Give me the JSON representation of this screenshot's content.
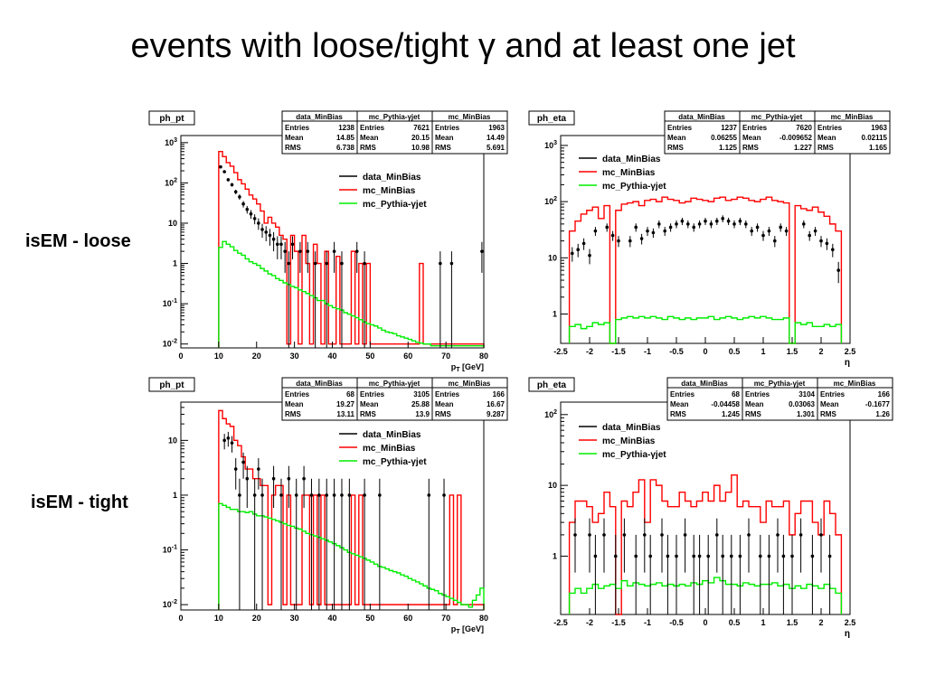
{
  "slide": {
    "title": "events with loose/tight γ and at least one jet",
    "row_labels": [
      "isEM - loose",
      "isEM - tight"
    ]
  },
  "colors": {
    "data": "#000000",
    "mc_minbias": "#ff0000",
    "pythia": "#00ee00"
  },
  "chart_data": [
    {
      "type": "line",
      "title": "ph_pt",
      "xlabel": "p_T [GeV]",
      "ylabel": "",
      "x_scale": "linear",
      "y_scale": "log",
      "xlim": [
        0,
        80
      ],
      "ylim": [
        0.008,
        1500
      ],
      "x_ticks": [
        "0",
        "10",
        "20",
        "30",
        "40",
        "50",
        "60",
        "70",
        "80"
      ],
      "y_ticks": [
        "10^-2",
        "10^-1",
        "1",
        "10",
        "10^2",
        "10^3"
      ],
      "legend": [
        "data_MinBias",
        "mc_MinBias",
        "mc_Pythia-γjet"
      ],
      "stats": [
        {
          "name": "data_MinBias",
          "rows": [
            [
              "Entries",
              "1238"
            ],
            [
              "Mean",
              "14.85"
            ],
            [
              "RMS",
              "6.738"
            ]
          ]
        },
        {
          "name": "mc_Pythia-γjet",
          "rows": [
            [
              "Entries",
              "7621"
            ],
            [
              "Mean",
              "20.15"
            ],
            [
              "RMS",
              "10.98"
            ]
          ]
        },
        {
          "name": "mc_MinBias",
          "rows": [
            [
              "Entries",
              "1963"
            ],
            [
              "Mean",
              "14.49"
            ],
            [
              "RMS",
              "5.691"
            ]
          ]
        }
      ],
      "bin_edges_start": 10,
      "bin_width": 1,
      "series": [
        {
          "name": "mc_MinBias",
          "values": [
            600,
            450,
            320,
            260,
            180,
            120,
            95,
            70,
            50,
            40,
            30,
            20,
            10,
            14,
            10,
            8,
            5,
            4,
            0.01,
            5,
            2,
            0.01,
            5,
            1,
            0.01,
            3,
            1,
            0.01,
            2,
            0.01,
            0.01,
            1.5,
            0.01,
            0.01,
            0.01,
            2,
            0.01,
            1,
            0.01,
            1,
            0.01,
            0.01,
            0.01,
            0.01,
            0.01,
            0.01,
            0.01,
            0.01,
            0.01,
            0.01,
            0.01,
            0.01,
            0.01,
            1,
            0.01,
            0.01,
            0.01,
            0.01,
            0.01,
            0.01,
            0.01,
            0.01,
            0.01,
            0.01,
            0.01,
            0.01,
            0.01,
            0.01,
            0.01,
            0.01
          ]
        },
        {
          "name": "mc_Pythia-γjet",
          "values": [
            2.5,
            3.5,
            3.0,
            2.6,
            2.1,
            1.8,
            1.6,
            1.3,
            1.1,
            1.0,
            0.9,
            0.75,
            0.65,
            0.55,
            0.5,
            0.42,
            0.38,
            0.33,
            0.3,
            0.27,
            0.25,
            0.22,
            0.2,
            0.18,
            0.16,
            0.14,
            0.12,
            0.12,
            0.1,
            0.09,
            0.08,
            0.075,
            0.07,
            0.06,
            0.055,
            0.05,
            0.045,
            0.04,
            0.035,
            0.032,
            0.03,
            0.028,
            0.025,
            0.022,
            0.02,
            0.019,
            0.018,
            0.016,
            0.015,
            0.014,
            0.013,
            0.012,
            0.011,
            0.0105,
            0.01,
            0.01,
            0.009,
            0.009,
            0.009,
            0.009,
            0.009,
            0.009,
            0.009,
            0.009,
            0.009,
            0.009,
            0.009,
            0.009,
            0.009,
            0.009
          ]
        }
      ],
      "points": {
        "name": "data_MinBias",
        "x": [
          10.5,
          11.5,
          12.5,
          13.5,
          14.5,
          15.5,
          16.5,
          17.5,
          18.5,
          19.5,
          20.5,
          21.5,
          22.5,
          23.5,
          24.5,
          25.5,
          26.5,
          27.5,
          28.5,
          29.5,
          31.5,
          33.5,
          35.5,
          38.5,
          40.5,
          42.5,
          46.5,
          48.5,
          68.5,
          71.5,
          79.5
        ],
        "y": [
          250,
          190,
          120,
          90,
          60,
          45,
          30,
          22,
          17,
          13,
          10,
          7,
          6,
          5,
          4,
          3,
          3,
          2,
          1,
          3,
          2,
          2,
          1,
          1,
          2,
          1,
          2,
          1,
          1,
          1,
          2
        ]
      }
    },
    {
      "type": "line",
      "title": "ph_eta",
      "xlabel": "η",
      "ylabel": "",
      "x_scale": "linear",
      "y_scale": "log",
      "xlim": [
        -2.5,
        2.5
      ],
      "ylim": [
        0.3,
        1500
      ],
      "x_ticks": [
        "-2.5",
        "-2",
        "-1.5",
        "-1",
        "-0.5",
        "0",
        "0.5",
        "1",
        "1.5",
        "2",
        "2.5"
      ],
      "y_ticks": [
        "1",
        "10",
        "10^2",
        "10^3"
      ],
      "legend": [
        "data_MinBias",
        "mc_MinBias",
        "mc_Pythia-γjet"
      ],
      "stats": [
        {
          "name": "data_MinBias",
          "rows": [
            [
              "Entries",
              "1237"
            ],
            [
              "Mean",
              "0.06255"
            ],
            [
              "RMS",
              "1.125"
            ]
          ]
        },
        {
          "name": "mc_Pythia-γjet",
          "rows": [
            [
              "Entries",
              "7620"
            ],
            [
              "Mean",
              "-0.009652"
            ],
            [
              "RMS",
              "1.227"
            ]
          ]
        },
        {
          "name": "mc_MinBias",
          "rows": [
            [
              "Entries",
              "1963"
            ],
            [
              "Mean",
              "0.02115"
            ],
            [
              "RMS",
              "1.165"
            ]
          ]
        }
      ],
      "bin_edges_start": -2.35,
      "bin_width": 0.1,
      "series": [
        {
          "name": "mc_MinBias",
          "values": [
            30,
            45,
            60,
            70,
            80,
            50,
            85,
            0.3,
            70,
            90,
            95,
            100,
            85,
            105,
            110,
            100,
            120,
            110,
            105,
            95,
            100,
            115,
            110,
            105,
            100,
            115,
            120,
            105,
            110,
            120,
            115,
            105,
            100,
            110,
            120,
            105,
            100,
            95,
            0.3,
            85,
            75,
            70,
            80,
            65,
            55,
            40,
            30
          ]
        },
        {
          "name": "mc_Pythia-γjet",
          "values": [
            0.6,
            0.65,
            0.55,
            0.6,
            0.7,
            0.65,
            0.7,
            0.3,
            0.8,
            0.85,
            0.9,
            0.85,
            0.9,
            0.85,
            0.9,
            0.85,
            0.8,
            0.9,
            0.85,
            0.8,
            0.85,
            0.8,
            0.85,
            0.85,
            0.9,
            0.8,
            0.85,
            0.9,
            0.85,
            0.8,
            0.85,
            0.9,
            0.85,
            0.9,
            0.85,
            0.8,
            0.8,
            0.85,
            0.3,
            0.7,
            0.65,
            0.7,
            0.6,
            0.6,
            0.65,
            0.6,
            0.65
          ]
        }
      ],
      "points": {
        "name": "data_MinBias",
        "x": [
          -2.3,
          -2.2,
          -2.1,
          -2.0,
          -1.9,
          -1.7,
          -1.6,
          -1.5,
          -1.3,
          -1.2,
          -1.1,
          -1.0,
          -0.9,
          -0.8,
          -0.7,
          -0.6,
          -0.5,
          -0.4,
          -0.3,
          -0.2,
          -0.1,
          0.0,
          0.1,
          0.2,
          0.3,
          0.4,
          0.5,
          0.6,
          0.7,
          0.8,
          0.9,
          1.0,
          1.1,
          1.2,
          1.3,
          1.4,
          1.7,
          1.8,
          1.9,
          2.0,
          2.1,
          2.2,
          2.3
        ],
        "y": [
          12,
          14,
          18,
          11,
          30,
          35,
          25,
          20,
          20,
          35,
          22,
          30,
          28,
          40,
          30,
          35,
          40,
          45,
          40,
          35,
          40,
          45,
          40,
          45,
          50,
          45,
          40,
          45,
          40,
          30,
          35,
          25,
          30,
          20,
          35,
          30,
          40,
          25,
          30,
          20,
          18,
          14,
          6
        ]
      }
    },
    {
      "type": "line",
      "title": "ph_pt",
      "xlabel": "p_T [GeV]",
      "ylabel": "",
      "x_scale": "linear",
      "y_scale": "log",
      "xlim": [
        0,
        80
      ],
      "ylim": [
        0.008,
        50
      ],
      "x_ticks": [
        "0",
        "10",
        "20",
        "30",
        "40",
        "50",
        "60",
        "70",
        "80"
      ],
      "y_ticks": [
        "10^-2",
        "10^-1",
        "1",
        "10"
      ],
      "legend": [
        "data_MinBias",
        "mc_MinBias",
        "mc_Pythia-γjet"
      ],
      "stats": [
        {
          "name": "data_MinBias",
          "rows": [
            [
              "Entries",
              "68"
            ],
            [
              "Mean",
              "19.27"
            ],
            [
              "RMS",
              "13.11"
            ]
          ]
        },
        {
          "name": "mc_Pythia-γjet",
          "rows": [
            [
              "Entries",
              "3105"
            ],
            [
              "Mean",
              "25.88"
            ],
            [
              "RMS",
              "13.9"
            ]
          ]
        },
        {
          "name": "mc_MinBias",
          "rows": [
            [
              "Entries",
              "166"
            ],
            [
              "Mean",
              "16.67"
            ],
            [
              "RMS",
              "9.287"
            ]
          ]
        }
      ],
      "bin_edges_start": 10,
      "bin_width": 1,
      "series": [
        {
          "name": "mc_MinBias",
          "values": [
            35,
            25,
            20,
            18,
            10,
            8,
            5,
            3,
            3,
            2,
            2,
            1.5,
            1.5,
            0.01,
            1,
            1.5,
            1.5,
            0.01,
            1,
            0.01,
            0.01,
            0.01,
            1,
            1,
            0.01,
            1,
            0.01,
            1,
            0.01,
            0.01,
            0.01,
            0.01,
            0.01,
            0.01,
            0.01,
            1,
            0.01,
            1,
            0.01,
            0.01,
            0.01,
            0.01,
            0.01,
            0.01,
            0.01,
            0.01,
            0.01,
            0.01,
            0.01,
            0.01,
            0.01,
            0.01,
            0.01,
            0.01,
            0.01,
            0.01,
            0.01,
            0.01,
            0.01,
            0.01,
            0.01,
            1,
            0.01,
            1,
            0.01,
            0.01,
            0.01,
            0.01,
            0.01,
            0.01
          ]
        },
        {
          "name": "mc_Pythia-γjet",
          "values": [
            0.7,
            0.65,
            0.6,
            0.55,
            0.55,
            0.5,
            0.5,
            0.48,
            0.5,
            0.45,
            0.42,
            0.42,
            0.4,
            0.38,
            0.36,
            0.34,
            0.32,
            0.3,
            0.28,
            0.27,
            0.25,
            0.24,
            0.22,
            0.2,
            0.19,
            0.18,
            0.17,
            0.16,
            0.15,
            0.14,
            0.13,
            0.12,
            0.11,
            0.1,
            0.09,
            0.085,
            0.08,
            0.075,
            0.07,
            0.065,
            0.06,
            0.055,
            0.05,
            0.048,
            0.045,
            0.042,
            0.04,
            0.038,
            0.035,
            0.033,
            0.03,
            0.028,
            0.026,
            0.024,
            0.022,
            0.02,
            0.019,
            0.018,
            0.016,
            0.015,
            0.014,
            0.013,
            0.012,
            0.011,
            0.01,
            0.01,
            0.009,
            0.012,
            0.015,
            0.02
          ]
        }
      ],
      "points": {
        "name": "data_MinBias",
        "x": [
          11.5,
          12.5,
          13.5,
          14.5,
          15.5,
          16.5,
          17.5,
          19.5,
          20.5,
          21.5,
          24.5,
          26.5,
          28.5,
          30.5,
          32.5,
          34.5,
          36.5,
          38.5,
          40.5,
          42.5,
          44.5,
          48.5,
          52.5,
          65.5,
          69.5
        ],
        "y": [
          10,
          11,
          9,
          3,
          1,
          4,
          2,
          1,
          3,
          1,
          2,
          1,
          2,
          1,
          2,
          1,
          1,
          1,
          1,
          1,
          1,
          1,
          1,
          1,
          1
        ]
      }
    },
    {
      "type": "line",
      "title": "ph_eta",
      "xlabel": "η",
      "ylabel": "",
      "x_scale": "linear",
      "y_scale": "log",
      "xlim": [
        -2.5,
        2.5
      ],
      "ylim": [
        0.15,
        150
      ],
      "x_ticks": [
        "-2.5",
        "-2",
        "-1.5",
        "-1",
        "-0.5",
        "0",
        "0.5",
        "1",
        "1.5",
        "2",
        "2.5"
      ],
      "y_ticks": [
        "1",
        "10",
        "10^2"
      ],
      "legend": [
        "data_MinBias",
        "mc_MinBias",
        "mc_Pythia-γjet"
      ],
      "stats": [
        {
          "name": "data_MinBias",
          "rows": [
            [
              "Entries",
              "68"
            ],
            [
              "Mean",
              "-0.04458"
            ],
            [
              "RMS",
              "1.245"
            ]
          ]
        },
        {
          "name": "mc_Pythia-γjet",
          "rows": [
            [
              "Entries",
              "3104"
            ],
            [
              "Mean",
              "0.03063"
            ],
            [
              "RMS",
              "1.301"
            ]
          ]
        },
        {
          "name": "mc_MinBias",
          "rows": [
            [
              "Entries",
              "166"
            ],
            [
              "Mean",
              "-0.1677"
            ],
            [
              "RMS",
              "1.26"
            ]
          ]
        }
      ],
      "bin_edges_start": -2.35,
      "bin_width": 0.1,
      "series": [
        {
          "name": "mc_MinBias",
          "values": [
            3,
            6,
            6,
            5,
            3,
            4,
            8,
            5,
            0.15,
            6,
            5,
            8,
            12,
            3,
            12,
            10,
            6,
            5,
            5,
            8,
            6,
            5,
            6,
            8,
            6,
            10,
            6,
            8,
            14,
            5,
            6,
            5,
            5,
            3,
            6,
            5,
            5,
            6,
            2,
            4,
            6,
            6,
            3,
            2,
            6,
            4,
            2
          ]
        },
        {
          "name": "mc_Pythia-γjet",
          "values": [
            0.3,
            0.35,
            0.3,
            0.35,
            0.4,
            0.35,
            0.38,
            0.4,
            0.35,
            0.45,
            0.38,
            0.42,
            0.4,
            0.38,
            0.4,
            0.42,
            0.38,
            0.4,
            0.38,
            0.4,
            0.38,
            0.42,
            0.4,
            0.45,
            0.42,
            0.5,
            0.45,
            0.4,
            0.4,
            0.38,
            0.42,
            0.4,
            0.38,
            0.4,
            0.4,
            0.42,
            0.38,
            0.4,
            0.35,
            0.38,
            0.35,
            0.4,
            0.38,
            0.35,
            0.4,
            0.35,
            0.3
          ]
        }
      ],
      "points": {
        "name": "data_MinBias",
        "x": [
          -2.25,
          -2.0,
          -1.9,
          -1.75,
          -1.55,
          -1.4,
          -1.2,
          -1.05,
          -0.95,
          -0.75,
          -0.65,
          -0.5,
          -0.35,
          -0.2,
          -0.1,
          0.05,
          0.2,
          0.3,
          0.45,
          0.6,
          0.75,
          0.95,
          1.1,
          1.25,
          1.35,
          1.5,
          1.65,
          1.85,
          2.0,
          2.15
        ],
        "y": [
          2,
          2,
          1,
          2,
          1,
          2,
          1,
          2,
          1,
          2,
          1,
          1,
          2,
          1,
          1,
          1,
          2,
          1,
          1,
          1,
          2,
          1,
          1,
          2,
          1,
          1,
          2,
          1,
          2,
          1
        ]
      }
    }
  ]
}
